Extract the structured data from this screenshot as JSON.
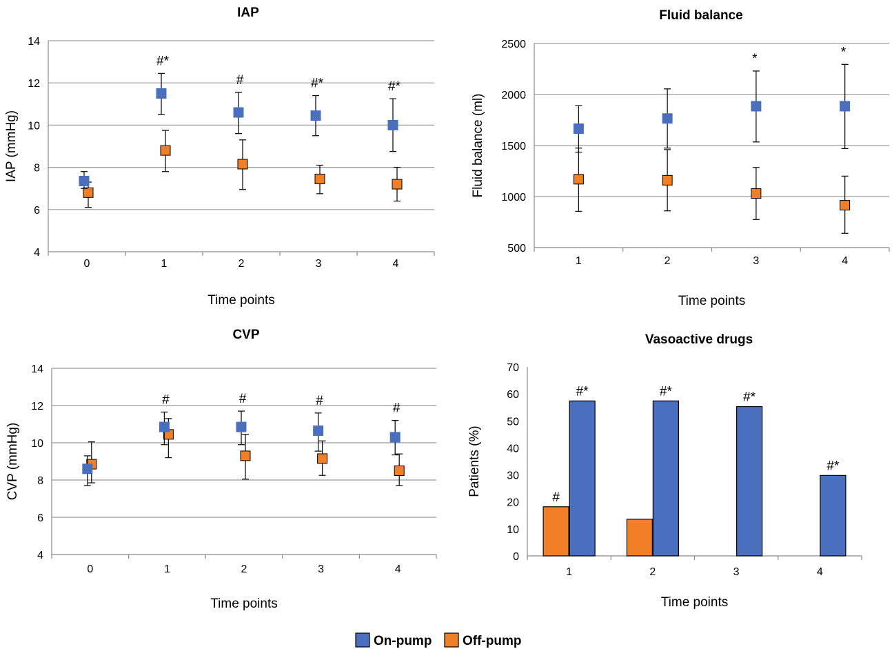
{
  "legend": [
    {
      "label": "On-pump",
      "color": "#4a6fbf"
    },
    {
      "label": "Off-pump",
      "color": "#f07f27"
    }
  ],
  "chart_data": [
    {
      "id": "iap",
      "type": "scatter",
      "title": "IAP",
      "xlabel": "Time points",
      "ylabel": "IAP (mmHg)",
      "categories": [
        "0",
        "1",
        "2",
        "3",
        "4"
      ],
      "ylim": [
        4,
        14
      ],
      "yticks": [
        4,
        6,
        8,
        10,
        12,
        14
      ],
      "grid": true,
      "series": [
        {
          "name": "On-pump",
          "color": "#4a6fbf",
          "values": [
            7.35,
            11.5,
            10.6,
            10.45,
            10.0
          ],
          "err_low": [
            7.0,
            10.5,
            9.6,
            9.5,
            8.75
          ],
          "err_high": [
            7.8,
            12.45,
            11.55,
            11.4,
            11.25
          ]
        },
        {
          "name": "Off-pump",
          "color": "#f07f27",
          "values": [
            6.8,
            8.8,
            8.15,
            7.45,
            7.2
          ],
          "err_low": [
            6.1,
            7.8,
            6.95,
            6.75,
            6.4
          ],
          "err_high": [
            7.3,
            9.75,
            9.3,
            8.1,
            8.0
          ]
        }
      ],
      "annotations": [
        "",
        "#*",
        "#",
        "#*",
        "#*"
      ]
    },
    {
      "id": "fluid",
      "type": "scatter",
      "title": "Fluid balance",
      "xlabel": "Time points",
      "ylabel": "Fluid balance (ml)",
      "categories": [
        "1",
        "2",
        "3",
        "4"
      ],
      "ylim": [
        500,
        2500
      ],
      "yticks": [
        500,
        1000,
        1500,
        2000,
        2500
      ],
      "grid": true,
      "series": [
        {
          "name": "On-pump",
          "color": "#4a6fbf",
          "values": [
            1665,
            1765,
            1885,
            1885
          ],
          "err_low": [
            1435,
            1475,
            1535,
            1470
          ],
          "err_high": [
            1890,
            2055,
            2230,
            2295
          ]
        },
        {
          "name": "Off-pump",
          "color": "#f07f27",
          "values": [
            1170,
            1160,
            1030,
            915
          ],
          "err_low": [
            855,
            860,
            775,
            640
          ],
          "err_high": [
            1475,
            1460,
            1285,
            1200
          ]
        }
      ],
      "annotations": [
        "",
        "",
        "*",
        "*"
      ]
    },
    {
      "id": "cvp",
      "type": "scatter",
      "title": "CVP",
      "xlabel": "Time points",
      "ylabel": "CVP (mmHg)",
      "categories": [
        "0",
        "1",
        "2",
        "3",
        "4"
      ],
      "ylim": [
        4,
        14
      ],
      "yticks": [
        4,
        6,
        8,
        10,
        12,
        14
      ],
      "grid": true,
      "series": [
        {
          "name": "On-pump",
          "color": "#4a6fbf",
          "values": [
            8.6,
            10.85,
            10.85,
            10.65,
            10.3
          ],
          "err_low": [
            7.7,
            9.9,
            9.9,
            9.55,
            9.35
          ],
          "err_high": [
            9.3,
            11.65,
            11.7,
            11.6,
            11.2
          ]
        },
        {
          "name": "Off-pump",
          "color": "#f07f27",
          "values": [
            8.85,
            10.45,
            9.3,
            9.15,
            8.5
          ],
          "err_low": [
            7.85,
            9.2,
            8.05,
            8.25,
            7.7
          ],
          "err_high": [
            10.05,
            11.3,
            10.45,
            10.1,
            9.4
          ]
        }
      ],
      "annotations": [
        "",
        "#",
        "#",
        "#",
        "#"
      ]
    },
    {
      "id": "vaso",
      "type": "bar",
      "title": "Vasoactive drugs",
      "xlabel": "Time points",
      "ylabel": "Patients (%)",
      "categories": [
        "1",
        "2",
        "3",
        "4"
      ],
      "ylim": [
        0,
        70
      ],
      "yticks": [
        0,
        10,
        20,
        30,
        40,
        50,
        60,
        70
      ],
      "grid": false,
      "series": [
        {
          "name": "Off-pump",
          "color": "#f07f27",
          "values": [
            18.2,
            13.6,
            0,
            0
          ],
          "annotations": [
            "#",
            "",
            "",
            ""
          ]
        },
        {
          "name": "On-pump",
          "color": "#4a6fbf",
          "values": [
            57.4,
            57.4,
            55.3,
            29.8
          ],
          "annotations": [
            "#*",
            "#*",
            "#*",
            "#*"
          ]
        }
      ]
    }
  ]
}
